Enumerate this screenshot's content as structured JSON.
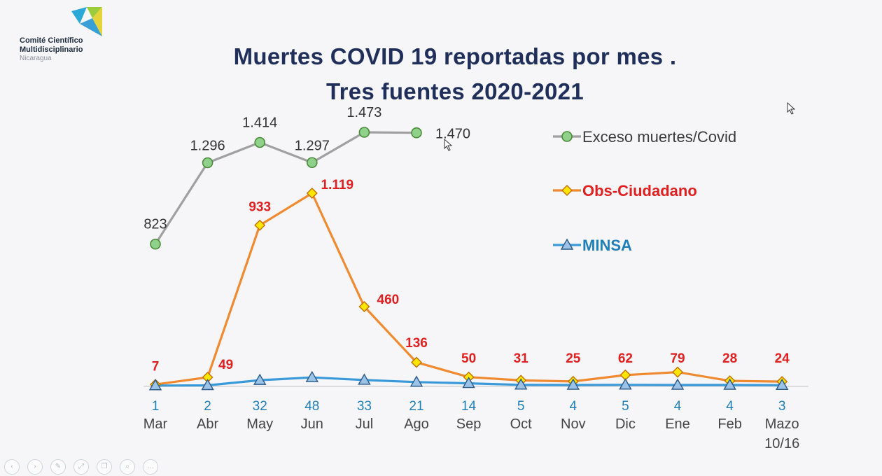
{
  "logo": {
    "line1": "Comité Científico",
    "line2": "Multidisciplinario",
    "line3": "Nicaragua"
  },
  "title": {
    "line1": "Muertes COVID 19 reportadas por mes .",
    "line2": "Tres fuentes  2020-2021"
  },
  "colors": {
    "title": "#1f2f5a",
    "exceso_line": "#a0a0a0",
    "exceso_marker": "#8fd18a",
    "obs_line": "#f08a30",
    "obs_marker": "#ffe600",
    "obs_label": "#e02020",
    "minsa_line": "#3a9ad9",
    "minsa_marker": "#9cc3e6",
    "minsa_label": "#1f7fb8"
  },
  "toolbar": {
    "icons": [
      "prev-icon",
      "next-icon",
      "pen-icon",
      "link-icon",
      "copy-icon",
      "zoom-icon",
      "more-icon"
    ]
  },
  "chart_data": {
    "type": "line",
    "title": "Muertes COVID 19 reportadas por mes . Tres fuentes  2020-2021",
    "categories": [
      "Mar",
      "Abr",
      "May",
      "Jun",
      "Jul",
      "Ago",
      "Sep",
      "Oct",
      "Nov",
      "Dic",
      "Ene",
      "Feb",
      "Mazo"
    ],
    "category_note": "10/16",
    "legend_position": "right",
    "grid": false,
    "ylim": [
      0,
      1600
    ],
    "series": [
      {
        "name": "Exceso muertes/Covid",
        "marker": "circle",
        "values": [
          823,
          1296,
          1414,
          1297,
          1473,
          1470,
          null,
          null,
          null,
          null,
          null,
          null,
          null
        ],
        "labels": [
          "823",
          "1.296",
          "1.414",
          "1.297",
          "1.473",
          "1.470",
          null,
          null,
          null,
          null,
          null,
          null,
          null
        ]
      },
      {
        "name": "Obs-Ciudadano",
        "marker": "diamond",
        "values": [
          7,
          49,
          933,
          1119,
          460,
          136,
          50,
          31,
          25,
          62,
          79,
          28,
          24
        ],
        "labels": [
          "7",
          "49",
          "933",
          "1.119",
          "460",
          "136",
          "50",
          "31",
          "25",
          "62",
          "79",
          "28",
          "24"
        ]
      },
      {
        "name": "MINSA",
        "marker": "triangle",
        "values": [
          1,
          2,
          32,
          48,
          33,
          21,
          14,
          5,
          4,
          5,
          4,
          4,
          3
        ],
        "labels": [
          "1",
          "2",
          "32",
          "48",
          "33",
          "21",
          "14",
          "5",
          "4",
          "5",
          "4",
          "4",
          "3"
        ]
      }
    ]
  }
}
